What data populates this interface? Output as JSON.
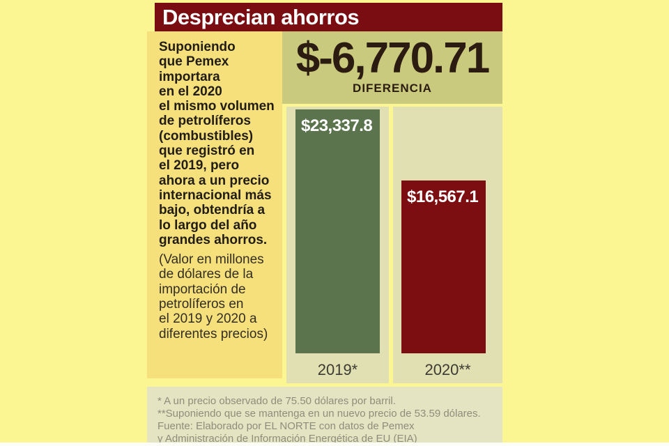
{
  "title": "Desprecian ahorros",
  "sidebar": {
    "intro": "Suponiendo\nque Pemex\nimportara\nen el 2020\nel mismo volumen\nde petrolíferos\n(combustibles)\nque registró en\nel 2019, pero\nahora a un precio\ninternacional más\nbajo, obtendría a\nlo largo del año\ngrandes ahorros.",
    "note": "(Valor en millones\nde dólares de la\nimportación de\npetrolíferos en\nel 2019 y 2020 a\ndiferentes precios)"
  },
  "chart_data": {
    "type": "bar",
    "title": "Desprecian ahorros",
    "subtitle": "Valor en millones de dólares de la importación de petrolíferos en el 2019 y 2020 a diferentes precios",
    "categories": [
      "2019*",
      "2020**"
    ],
    "values": [
      23337.8,
      16567.1
    ],
    "value_labels": [
      "$23,337.8",
      "$16,567.1"
    ],
    "series_colors": [
      "#5B744E",
      "#7C0D11"
    ],
    "difference": {
      "value": "$-6,770.71",
      "label": "DIFERENCIA"
    },
    "ylim": [
      0,
      23337.8
    ],
    "grid": false,
    "legend": false
  },
  "footer": {
    "lines": [
      "* A un precio observado de 75.50 dólares por barril.",
      "**Suponiendo que se mantenga en un nuevo precio de 53.59 dólares.",
      "Fuente: Elaborado por EL NORTE con datos de Pemex",
      "y Administración de Información Energética de EU (EIA)"
    ]
  },
  "colors": {
    "page_bg": "#FBF592",
    "header_bg": "#7A0D12",
    "sidebar_bg": "#F6E07B",
    "diff_band_bg": "#C9CA7D",
    "panel_bg": "#E0E0B3",
    "footer_bg": "#E4E4C3",
    "bar_2019": "#5B744E",
    "bar_2020": "#7C0D11",
    "ink_dark": "#2B1B10",
    "footer_text": "#8D8D7B"
  }
}
